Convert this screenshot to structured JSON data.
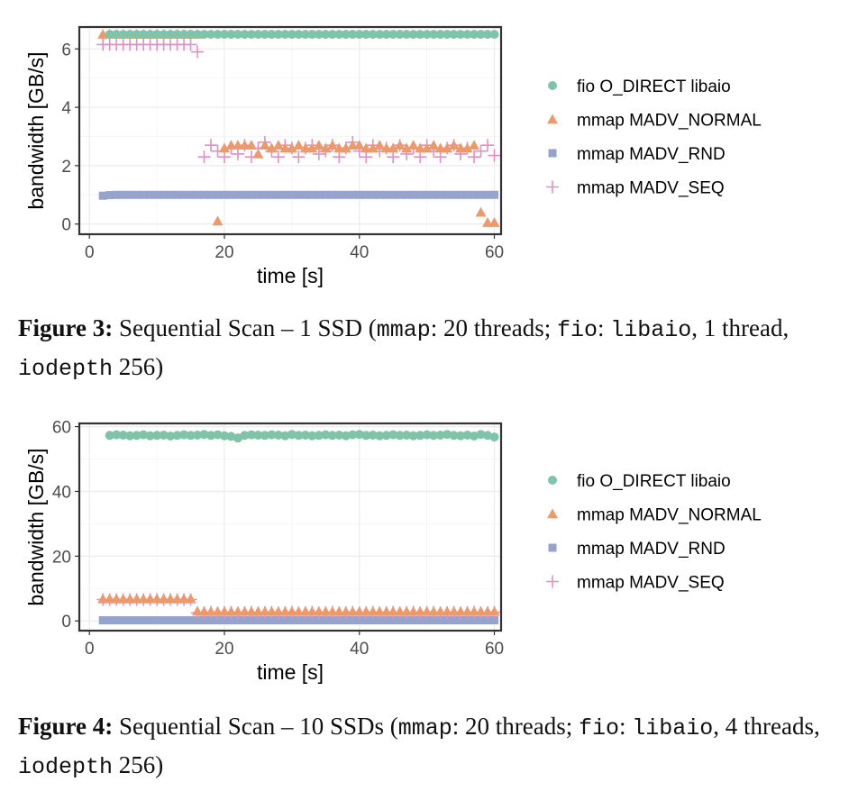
{
  "colors": {
    "fio": "#7fc3ab",
    "normal": "#ec9a6c",
    "rnd": "#95a3cd",
    "seq": "#e28fc6",
    "grid": "#ebebeb",
    "axis_text": "#4d4d4d"
  },
  "legend": [
    {
      "key": "fio",
      "label": "fio O_DIRECT libaio",
      "shape": "circle"
    },
    {
      "key": "normal",
      "label": "mmap MADV_NORMAL",
      "shape": "triangle"
    },
    {
      "key": "rnd",
      "label": "mmap MADV_RND",
      "shape": "square"
    },
    {
      "key": "seq",
      "label": "mmap MADV_SEQ",
      "shape": "plus"
    }
  ],
  "captions": [
    {
      "label": "Figure 3:",
      "parts": [
        {
          "t": " Sequential Scan – 1 SSD ("
        },
        {
          "t": "mmap",
          "mono": true
        },
        {
          "t": ": 20 threads; "
        },
        {
          "t": "fio",
          "mono": true
        },
        {
          "t": ": "
        },
        {
          "t": "libaio",
          "mono": true
        },
        {
          "t": ", 1 thread, "
        },
        {
          "t": "iodepth",
          "mono": true
        },
        {
          "t": " 256)"
        }
      ]
    },
    {
      "label": "Figure 4:",
      "parts": [
        {
          "t": " Sequential Scan – 10 SSDs ("
        },
        {
          "t": "mmap",
          "mono": true
        },
        {
          "t": ": 20 threads; "
        },
        {
          "t": "fio",
          "mono": true
        },
        {
          "t": ": "
        },
        {
          "t": "libaio",
          "mono": true
        },
        {
          "t": ", 4 threads, "
        },
        {
          "t": "iodepth",
          "mono": true
        },
        {
          "t": " 256)"
        }
      ]
    }
  ],
  "chart_data": [
    {
      "type": "scatter",
      "xlabel": "time [s]",
      "ylabel": "bandwidth [GB/s]",
      "xlim": [
        -1.5,
        61
      ],
      "ylim": [
        -0.35,
        6.75
      ],
      "xticks": [
        0,
        20,
        40,
        60
      ],
      "yticks": [
        0,
        2,
        4,
        6
      ],
      "grid": true,
      "legend_position": "right",
      "series": [
        {
          "key": "fio",
          "name": "fio O_DIRECT libaio",
          "x": [
            3,
            4,
            5,
            6,
            7,
            8,
            9,
            10,
            11,
            12,
            13,
            14,
            15,
            16,
            17,
            18,
            19,
            20,
            21,
            22,
            23,
            24,
            25,
            26,
            27,
            28,
            29,
            30,
            31,
            32,
            33,
            34,
            35,
            36,
            37,
            38,
            39,
            40,
            41,
            42,
            43,
            44,
            45,
            46,
            47,
            48,
            49,
            50,
            51,
            52,
            53,
            54,
            55,
            56,
            57,
            58,
            59,
            60
          ],
          "y": [
            6.5,
            6.5,
            6.5,
            6.5,
            6.5,
            6.5,
            6.5,
            6.5,
            6.5,
            6.5,
            6.5,
            6.5,
            6.5,
            6.5,
            6.5,
            6.5,
            6.5,
            6.5,
            6.5,
            6.5,
            6.5,
            6.5,
            6.5,
            6.5,
            6.5,
            6.5,
            6.5,
            6.5,
            6.5,
            6.5,
            6.5,
            6.5,
            6.5,
            6.5,
            6.5,
            6.5,
            6.5,
            6.5,
            6.5,
            6.5,
            6.5,
            6.5,
            6.5,
            6.5,
            6.5,
            6.5,
            6.5,
            6.5,
            6.5,
            6.5,
            6.5,
            6.5,
            6.5,
            6.5,
            6.5,
            6.5,
            6.5,
            6.5
          ]
        },
        {
          "key": "normal",
          "name": "mmap MADV_NORMAL",
          "x": [
            2,
            3,
            4,
            5,
            6,
            7,
            8,
            9,
            10,
            11,
            12,
            13,
            14,
            15,
            16,
            19,
            20,
            21,
            22,
            23,
            24,
            25,
            26,
            27,
            28,
            29,
            30,
            31,
            32,
            33,
            34,
            35,
            36,
            37,
            38,
            39,
            40,
            41,
            42,
            43,
            44,
            45,
            46,
            47,
            48,
            49,
            50,
            51,
            52,
            53,
            54,
            55,
            56,
            57,
            58,
            59,
            60
          ],
          "y": [
            6.5,
            6.5,
            6.5,
            6.5,
            6.5,
            6.5,
            6.5,
            6.5,
            6.5,
            6.5,
            6.5,
            6.5,
            6.5,
            6.5,
            6.5,
            0.1,
            2.6,
            2.7,
            2.7,
            2.7,
            2.7,
            2.4,
            2.7,
            2.6,
            2.7,
            2.6,
            2.6,
            2.7,
            2.6,
            2.6,
            2.7,
            2.6,
            2.7,
            2.6,
            2.6,
            2.7,
            2.7,
            2.6,
            2.6,
            2.7,
            2.6,
            2.6,
            2.7,
            2.6,
            2.7,
            2.6,
            2.6,
            2.7,
            2.6,
            2.6,
            2.7,
            2.6,
            2.6,
            2.7,
            0.4,
            0.05,
            0.05
          ]
        },
        {
          "key": "rnd",
          "name": "mmap MADV_RND",
          "x": [
            2,
            3,
            4,
            5,
            6,
            7,
            8,
            9,
            10,
            11,
            12,
            13,
            14,
            15,
            16,
            17,
            18,
            19,
            20,
            21,
            22,
            23,
            24,
            25,
            26,
            27,
            28,
            29,
            30,
            31,
            32,
            33,
            34,
            35,
            36,
            37,
            38,
            39,
            40,
            41,
            42,
            43,
            44,
            45,
            46,
            47,
            48,
            49,
            50,
            51,
            52,
            53,
            54,
            55,
            56,
            57,
            58,
            59,
            60
          ],
          "y": [
            0.97,
            0.99,
            1.0,
            1.0,
            1.0,
            1.0,
            1.0,
            1.0,
            1.0,
            1.0,
            1.0,
            1.0,
            1.0,
            1.0,
            1.0,
            1.0,
            1.0,
            1.0,
            1.0,
            1.0,
            1.0,
            1.0,
            1.0,
            1.0,
            1.0,
            1.0,
            1.0,
            1.0,
            1.0,
            1.0,
            1.0,
            1.0,
            1.0,
            1.0,
            1.0,
            1.0,
            1.0,
            1.0,
            1.0,
            1.0,
            1.0,
            1.0,
            1.0,
            1.0,
            1.0,
            1.0,
            1.0,
            1.0,
            1.0,
            1.0,
            1.0,
            1.0,
            1.0,
            1.0,
            1.0,
            1.0,
            1.0,
            1.0,
            1.0
          ]
        },
        {
          "key": "seq",
          "name": "mmap MADV_SEQ",
          "x": [
            2,
            3,
            4,
            5,
            6,
            7,
            8,
            9,
            10,
            11,
            12,
            13,
            14,
            15,
            16,
            17,
            18,
            19,
            20,
            21,
            22,
            23,
            24,
            25,
            26,
            27,
            28,
            29,
            30,
            31,
            32,
            33,
            34,
            35,
            36,
            37,
            38,
            39,
            40,
            41,
            42,
            43,
            44,
            45,
            46,
            47,
            48,
            49,
            50,
            51,
            52,
            53,
            54,
            55,
            56,
            57,
            58,
            59,
            60
          ],
          "y": [
            6.15,
            6.15,
            6.15,
            6.15,
            6.15,
            6.15,
            6.15,
            6.15,
            6.15,
            6.15,
            6.15,
            6.15,
            6.15,
            6.15,
            5.9,
            2.3,
            2.7,
            2.5,
            2.3,
            2.6,
            2.4,
            2.7,
            2.3,
            2.6,
            2.8,
            2.5,
            2.3,
            2.7,
            2.6,
            2.3,
            2.6,
            2.7,
            2.4,
            2.5,
            2.7,
            2.3,
            2.6,
            2.8,
            2.5,
            2.3,
            2.7,
            2.5,
            2.6,
            2.3,
            2.7,
            2.4,
            2.6,
            2.3,
            2.7,
            2.5,
            2.3,
            2.6,
            2.7,
            2.4,
            2.6,
            2.3,
            2.5,
            2.7,
            2.35
          ]
        }
      ]
    },
    {
      "type": "scatter",
      "xlabel": "time [s]",
      "ylabel": "bandwidth [GB/s]",
      "xlim": [
        -1.5,
        61
      ],
      "ylim": [
        -3,
        61
      ],
      "xticks": [
        0,
        20,
        40,
        60
      ],
      "yticks": [
        0,
        20,
        40,
        60
      ],
      "grid": true,
      "legend_position": "right",
      "series": [
        {
          "key": "fio",
          "name": "fio O_DIRECT libaio",
          "x": [
            3,
            4,
            5,
            6,
            7,
            8,
            9,
            10,
            11,
            12,
            13,
            14,
            15,
            16,
            17,
            18,
            19,
            20,
            21,
            22,
            23,
            24,
            25,
            26,
            27,
            28,
            29,
            30,
            31,
            32,
            33,
            34,
            35,
            36,
            37,
            38,
            39,
            40,
            41,
            42,
            43,
            44,
            45,
            46,
            47,
            48,
            49,
            50,
            51,
            52,
            53,
            54,
            55,
            56,
            57,
            58,
            59,
            60
          ],
          "y": [
            57.3,
            57.5,
            57.4,
            57.2,
            57.3,
            57.5,
            57.2,
            57.3,
            57.4,
            57.1,
            57.3,
            57.5,
            57.3,
            57.4,
            57.6,
            57.3,
            57.5,
            57.2,
            57.0,
            56.5,
            57.3,
            57.5,
            57.4,
            57.3,
            57.5,
            57.4,
            57.2,
            57.6,
            57.3,
            57.4,
            57.2,
            57.3,
            57.5,
            57.3,
            57.4,
            57.2,
            57.5,
            57.6,
            57.3,
            57.4,
            57.2,
            57.3,
            57.5,
            57.3,
            57.4,
            57.2,
            57.3,
            57.5,
            57.3,
            57.4,
            57.6,
            57.3,
            57.2,
            57.4,
            57.1,
            57.6,
            57.3,
            56.8
          ]
        },
        {
          "key": "normal",
          "name": "mmap MADV_NORMAL",
          "x": [
            2,
            3,
            4,
            5,
            6,
            7,
            8,
            9,
            10,
            11,
            12,
            13,
            14,
            15,
            16,
            17,
            18,
            19,
            20,
            21,
            22,
            23,
            24,
            25,
            26,
            27,
            28,
            29,
            30,
            31,
            32,
            33,
            34,
            35,
            36,
            37,
            38,
            39,
            40,
            41,
            42,
            43,
            44,
            45,
            46,
            47,
            48,
            49,
            50,
            51,
            52,
            53,
            54,
            55,
            56,
            57,
            58,
            59,
            60
          ],
          "y": [
            6.8,
            6.8,
            6.8,
            6.8,
            6.8,
            6.8,
            6.8,
            6.8,
            6.8,
            6.8,
            6.8,
            6.8,
            6.8,
            6.8,
            3.0,
            2.9,
            2.9,
            2.9,
            2.9,
            2.9,
            2.9,
            2.9,
            2.9,
            2.9,
            2.9,
            2.9,
            2.9,
            2.9,
            2.9,
            2.9,
            2.9,
            2.9,
            2.9,
            2.9,
            2.9,
            2.9,
            2.9,
            2.9,
            2.9,
            2.9,
            2.9,
            2.9,
            2.9,
            2.9,
            2.9,
            2.9,
            2.9,
            2.9,
            2.9,
            2.9,
            2.9,
            2.9,
            2.9,
            2.9,
            2.9,
            2.9,
            2.9,
            2.9,
            2.9
          ]
        },
        {
          "key": "rnd",
          "name": "mmap MADV_RND",
          "x": [
            2,
            3,
            4,
            5,
            6,
            7,
            8,
            9,
            10,
            11,
            12,
            13,
            14,
            15,
            16,
            17,
            18,
            19,
            20,
            21,
            22,
            23,
            24,
            25,
            26,
            27,
            28,
            29,
            30,
            31,
            32,
            33,
            34,
            35,
            36,
            37,
            38,
            39,
            40,
            41,
            42,
            43,
            44,
            45,
            46,
            47,
            48,
            49,
            50,
            51,
            52,
            53,
            54,
            55,
            56,
            57,
            58,
            59,
            60
          ],
          "y": [
            0.2,
            0.2,
            0.2,
            0.2,
            0.2,
            0.2,
            0.2,
            0.2,
            0.2,
            0.2,
            0.2,
            0.2,
            0.2,
            0.2,
            0.2,
            0.2,
            0.2,
            0.2,
            0.2,
            0.2,
            0.2,
            0.2,
            0.2,
            0.2,
            0.2,
            0.2,
            0.2,
            0.2,
            0.2,
            0.2,
            0.2,
            0.2,
            0.2,
            0.2,
            0.2,
            0.2,
            0.2,
            0.2,
            0.2,
            0.2,
            0.2,
            0.2,
            0.2,
            0.2,
            0.2,
            0.2,
            0.2,
            0.2,
            0.2,
            0.2,
            0.2,
            0.2,
            0.2,
            0.2,
            0.2,
            0.2,
            0.2,
            0.2,
            0.2
          ]
        },
        {
          "key": "seq",
          "name": "mmap MADV_SEQ",
          "x": [
            2,
            3,
            4,
            5,
            6,
            7,
            8,
            9,
            10,
            11,
            12,
            13,
            14,
            15,
            16,
            17,
            18,
            19,
            20,
            21,
            22,
            23,
            24,
            25,
            26,
            27,
            28,
            29,
            30,
            31,
            32,
            33,
            34,
            35,
            36,
            37,
            38,
            39,
            40,
            41,
            42,
            43,
            44,
            45,
            46,
            47,
            48,
            49,
            50,
            51,
            52,
            53,
            54,
            55,
            56,
            57,
            58,
            59,
            60
          ],
          "y": [
            6.6,
            6.6,
            6.6,
            6.6,
            6.6,
            6.6,
            6.6,
            6.6,
            6.6,
            6.6,
            6.6,
            6.6,
            6.6,
            6.6,
            2.5,
            2.6,
            2.7,
            2.5,
            2.6,
            2.7,
            2.5,
            2.6,
            2.7,
            2.5,
            2.6,
            2.7,
            2.5,
            2.6,
            2.7,
            2.5,
            2.6,
            2.7,
            2.5,
            2.6,
            2.7,
            2.5,
            2.6,
            2.7,
            2.5,
            2.6,
            2.7,
            2.5,
            2.6,
            2.7,
            2.5,
            2.6,
            2.7,
            2.5,
            2.6,
            2.7,
            2.5,
            2.6,
            2.7,
            2.5,
            2.6,
            2.7,
            2.5,
            2.6,
            2.7
          ]
        }
      ]
    }
  ]
}
